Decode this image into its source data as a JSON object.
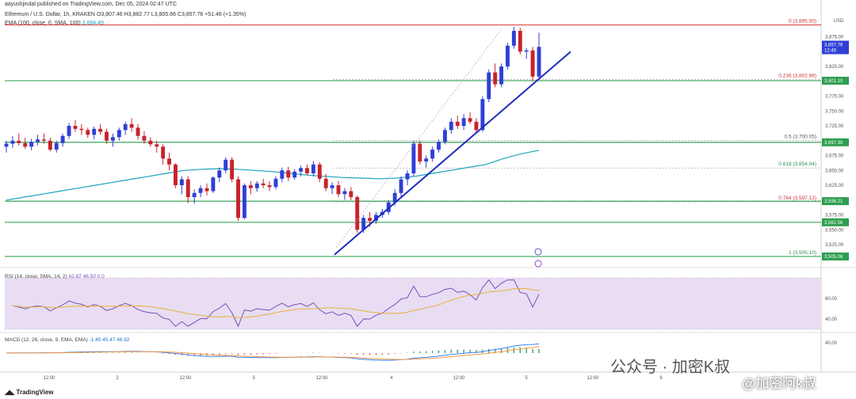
{
  "header": {
    "published": "aayushjindal published on TradingView.com, Dec 05, 2024 02:47 UTC",
    "symbol_line": "Ethereum / U.S. Dollar, 1h, KRAKEN",
    "ohlc": "O3,807.46  H3,882.77  L3,805.66  C3,857.76  +51.48 (+1.35%)",
    "ema_label": "EMA (100, close, 0, SMA, 100)",
    "ema_value": "3,684.49"
  },
  "rsi_label": "RSI (14, close, SMA, 14, 2)",
  "rsi_values": "62.87  46.50  0  0",
  "macd_label": "MACD (12, 26, close, 9, EMA, EMA)",
  "macd_values": "-1.45  45.47  46.92",
  "watermark_1": "公众号 · 加密K叔",
  "watermark_2": "@加密阿k叔",
  "tv_brand": "TradingView",
  "currency": "USD",
  "price_tag": {
    "price": "3,857.76",
    "time": "12:49"
  },
  "chart_data": {
    "type": "candlestick",
    "ylim": [
      3505,
      3905
    ],
    "y_ticks": [
      3525,
      3550,
      3575,
      3625,
      3650,
      3675,
      3725,
      3750,
      3775,
      3825,
      3850,
      3875
    ],
    "y_tick_labels": [
      "3,525.00",
      "3,550.00",
      "3,575.00",
      "3,625.00",
      "3,650.00",
      "3,675.00",
      "3,725.00",
      "3,750.00",
      "3,775.00",
      "3,825.00",
      "3,850.00",
      "3,875.00"
    ],
    "x_labels": [
      "12:00",
      "2",
      "12:00",
      "3",
      "12:00",
      "4",
      "12:00",
      "5",
      "12:00",
      "6"
    ],
    "fib_levels": [
      {
        "label": "0 (3,895.00)",
        "price": 3895,
        "color": "#cc3333"
      },
      {
        "label": "0.236 (3,802.98)",
        "price": 3802.98,
        "color": "#cc3333"
      },
      {
        "label": "0.5 (3,700.05)",
        "price": 3700.05,
        "color": "#555555"
      },
      {
        "label": "0.618 (3,654.04)",
        "price": 3654.04,
        "color": "#2e8b57"
      },
      {
        "label": "0.764 (3,597.12)",
        "price": 3597.12,
        "color": "#cc3333"
      },
      {
        "label": "1 (3,505.10)",
        "price": 3505.1,
        "color": "#2e8b57"
      }
    ],
    "level_tags": [
      {
        "label": "3,801.10",
        "price": 3801.1,
        "color": "#2e9e4f"
      },
      {
        "label": "3,697.30",
        "price": 3697.3,
        "color": "#2e9e4f"
      },
      {
        "label": "3,598.21",
        "price": 3598.21,
        "color": "#2e9e4f"
      },
      {
        "label": "3,562.56",
        "price": 3562.56,
        "color": "#2e9e4f"
      },
      {
        "label": "3,505.06",
        "price": 3505.06,
        "color": "#2e9e4f"
      }
    ],
    "candles": [
      [
        3690,
        3700,
        3680,
        3695
      ],
      [
        3695,
        3708,
        3688,
        3700
      ],
      [
        3700,
        3712,
        3692,
        3696
      ],
      [
        3696,
        3705,
        3686,
        3690
      ],
      [
        3690,
        3703,
        3684,
        3698
      ],
      [
        3698,
        3710,
        3692,
        3702
      ],
      [
        3702,
        3712,
        3695,
        3700
      ],
      [
        3700,
        3705,
        3682,
        3685
      ],
      [
        3685,
        3700,
        3680,
        3696
      ],
      [
        3696,
        3712,
        3690,
        3708
      ],
      [
        3708,
        3730,
        3703,
        3725
      ],
      [
        3725,
        3735,
        3715,
        3720
      ],
      [
        3720,
        3728,
        3710,
        3718
      ],
      [
        3718,
        3722,
        3705,
        3710
      ],
      [
        3710,
        3724,
        3702,
        3720
      ],
      [
        3720,
        3728,
        3710,
        3715
      ],
      [
        3715,
        3720,
        3695,
        3700
      ],
      [
        3700,
        3712,
        3690,
        3706
      ],
      [
        3706,
        3722,
        3700,
        3718
      ],
      [
        3718,
        3732,
        3710,
        3728
      ],
      [
        3728,
        3738,
        3715,
        3722
      ],
      [
        3722,
        3728,
        3702,
        3708
      ],
      [
        3708,
        3716,
        3695,
        3700
      ],
      [
        3700,
        3706,
        3690,
        3694
      ],
      [
        3694,
        3700,
        3680,
        3690
      ],
      [
        3690,
        3694,
        3660,
        3670
      ],
      [
        3670,
        3680,
        3650,
        3660
      ],
      [
        3660,
        3662,
        3620,
        3625
      ],
      [
        3625,
        3640,
        3610,
        3635
      ],
      [
        3635,
        3640,
        3595,
        3605
      ],
      [
        3605,
        3618,
        3594,
        3612
      ],
      [
        3612,
        3625,
        3605,
        3620
      ],
      [
        3620,
        3628,
        3608,
        3615
      ],
      [
        3615,
        3640,
        3612,
        3638
      ],
      [
        3638,
        3655,
        3630,
        3650
      ],
      [
        3650,
        3672,
        3645,
        3668
      ],
      [
        3668,
        3672,
        3630,
        3635
      ],
      [
        3635,
        3640,
        3565,
        3570
      ],
      [
        3570,
        3628,
        3568,
        3625
      ],
      [
        3625,
        3632,
        3610,
        3620
      ],
      [
        3620,
        3632,
        3614,
        3628
      ],
      [
        3628,
        3636,
        3620,
        3625
      ],
      [
        3625,
        3632,
        3615,
        3622
      ],
      [
        3622,
        3640,
        3618,
        3636
      ],
      [
        3636,
        3655,
        3630,
        3650
      ],
      [
        3650,
        3656,
        3632,
        3638
      ],
      [
        3638,
        3652,
        3634,
        3648
      ],
      [
        3648,
        3658,
        3640,
        3654
      ],
      [
        3654,
        3660,
        3642,
        3645
      ],
      [
        3645,
        3666,
        3640,
        3660
      ],
      [
        3660,
        3664,
        3630,
        3636
      ],
      [
        3636,
        3644,
        3615,
        3620
      ],
      [
        3620,
        3630,
        3610,
        3625
      ],
      [
        3625,
        3632,
        3605,
        3610
      ],
      [
        3610,
        3620,
        3600,
        3615
      ],
      [
        3615,
        3622,
        3600,
        3605
      ],
      [
        3605,
        3608,
        3545,
        3550
      ],
      [
        3550,
        3575,
        3545,
        3570
      ],
      [
        3570,
        3580,
        3555,
        3565
      ],
      [
        3565,
        3580,
        3560,
        3575
      ],
      [
        3575,
        3585,
        3570,
        3580
      ],
      [
        3580,
        3600,
        3575,
        3596
      ],
      [
        3596,
        3618,
        3590,
        3612
      ],
      [
        3612,
        3640,
        3605,
        3635
      ],
      [
        3635,
        3650,
        3625,
        3645
      ],
      [
        3645,
        3700,
        3640,
        3695
      ],
      [
        3695,
        3700,
        3660,
        3665
      ],
      [
        3665,
        3675,
        3655,
        3670
      ],
      [
        3670,
        3690,
        3665,
        3685
      ],
      [
        3685,
        3702,
        3680,
        3698
      ],
      [
        3698,
        3722,
        3694,
        3718
      ],
      [
        3718,
        3738,
        3712,
        3732
      ],
      [
        3732,
        3742,
        3720,
        3725
      ],
      [
        3725,
        3745,
        3718,
        3738
      ],
      [
        3738,
        3748,
        3728,
        3732
      ],
      [
        3732,
        3738,
        3712,
        3718
      ],
      [
        3718,
        3775,
        3715,
        3770
      ],
      [
        3770,
        3820,
        3765,
        3815
      ],
      [
        3815,
        3830,
        3790,
        3795
      ],
      [
        3795,
        3830,
        3790,
        3825
      ],
      [
        3825,
        3865,
        3820,
        3860
      ],
      [
        3860,
        3892,
        3855,
        3885
      ],
      [
        3885,
        3890,
        3845,
        3850
      ],
      [
        3850,
        3856,
        3838,
        3852
      ],
      [
        3852,
        3858,
        3800,
        3808
      ],
      [
        3808,
        3882,
        3805,
        3858
      ]
    ],
    "ema_100": [
      3600,
      3605,
      3610,
      3615,
      3620,
      3625,
      3630,
      3635,
      3640,
      3645,
      3650,
      3652,
      3653,
      3652,
      3650,
      3648,
      3645,
      3642,
      3640,
      3638,
      3637,
      3636,
      3637,
      3640,
      3645,
      3650,
      3655,
      3660,
      3670,
      3678,
      3684
    ]
  }
}
